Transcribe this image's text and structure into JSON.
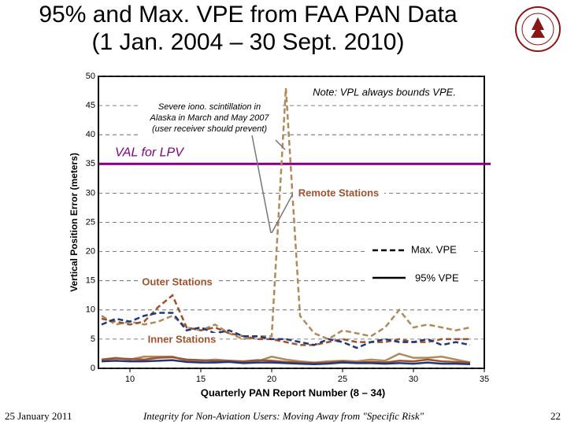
{
  "chart_data": {
    "type": "line",
    "title": "95% and Max. VPE from FAA PAN Data",
    "subtitle": "(1 Jan. 2004 – 30 Sept. 2010)",
    "x_label": "Quarterly PAN Report Number (8 – 34)",
    "y_label": "Vertical Position Error (meters)",
    "x": [
      8,
      9,
      10,
      11,
      12,
      13,
      14,
      15,
      16,
      17,
      18,
      19,
      20,
      21,
      22,
      23,
      24,
      25,
      26,
      27,
      28,
      29,
      30,
      31,
      32,
      33,
      34
    ],
    "xlim": [
      8,
      35
    ],
    "xticks": [
      10,
      15,
      20,
      25,
      30,
      35
    ],
    "ylim": [
      0,
      50
    ],
    "yticks": [
      0,
      5,
      10,
      15,
      20,
      25,
      30,
      35,
      40,
      45,
      50
    ],
    "grid": true,
    "series": [
      {
        "color": "#b08a5a",
        "dashed": true,
        "values": [
          9,
          7.5,
          8,
          7.5,
          8,
          9,
          7,
          6.5,
          7.5,
          6,
          5,
          5.5,
          5.5,
          48,
          9,
          6,
          5,
          6.5,
          6,
          5.5,
          7,
          10,
          7,
          7.5,
          7,
          6.5,
          7
        ]
      },
      {
        "color": "#a0522d",
        "dashed": true,
        "values": [
          8.5,
          8,
          7.5,
          8,
          10.5,
          12.5,
          7,
          6.5,
          7,
          6,
          5.5,
          5,
          5,
          4.5,
          4,
          4,
          4.5,
          5,
          4.5,
          4.5,
          4.5,
          5,
          4.5,
          4.5,
          5,
          5,
          5
        ]
      },
      {
        "color": "#1f3a7a",
        "dashed": true,
        "values": [
          7.5,
          8.5,
          8,
          9,
          9.5,
          9.5,
          6.5,
          7,
          6,
          6.5,
          5.5,
          5.5,
          5,
          5,
          4.5,
          4,
          5,
          4.5,
          3.5,
          4.5,
          5,
          4.5,
          4.5,
          5,
          4,
          4.5,
          4
        ]
      },
      {
        "color": "#b08a5a",
        "dashed": false,
        "values": [
          1.5,
          1.8,
          1.5,
          2,
          2,
          2,
          1.3,
          1.3,
          1.5,
          1.3,
          1.1,
          1.2,
          2,
          1.5,
          1.2,
          1,
          1.2,
          1.3,
          1.2,
          1.5,
          1.3,
          2.5,
          1.8,
          1.8,
          2,
          1.5,
          1
        ]
      },
      {
        "color": "#a0522d",
        "dashed": false,
        "values": [
          1.5,
          1.7,
          1.6,
          1.5,
          1.8,
          1.9,
          1.5,
          1.4,
          1.3,
          1.3,
          1.2,
          1.4,
          1.3,
          1.1,
          1,
          0.9,
          1,
          1.2,
          1,
          1.1,
          1,
          1.3,
          1.2,
          1.5,
          1.2,
          1.1,
          1
        ]
      },
      {
        "color": "#1f3a7a",
        "dashed": false,
        "values": [
          1.2,
          1.3,
          1.2,
          1.2,
          1.3,
          1.4,
          1.1,
          1,
          1,
          1.1,
          0.9,
          1,
          1,
          0.9,
          0.8,
          0.7,
          0.8,
          1,
          0.9,
          0.9,
          0.8,
          0.9,
          0.8,
          1,
          0.8,
          0.8,
          0.7
        ]
      }
    ],
    "reference_line": {
      "value": 35,
      "label": "VAL for LPV",
      "color": "#800080"
    },
    "legend": {
      "dashed": "Max. VPE",
      "solid": "95% VPE"
    },
    "note": "Note: VPL always bounds VPE.",
    "iono_note": [
      "Severe iono. scintillation in",
      "Alaska in March and May 2007",
      "(user receiver should prevent)"
    ],
    "group_labels": {
      "remote": "Remote Stations",
      "outer": "Outer Stations",
      "inner": "Inner Stations"
    }
  },
  "footer": {
    "date": "25 January 2011",
    "caption": "Integrity for Non-Aviation Users: Moving Away from \"Specific Risk\"",
    "page": "22"
  }
}
